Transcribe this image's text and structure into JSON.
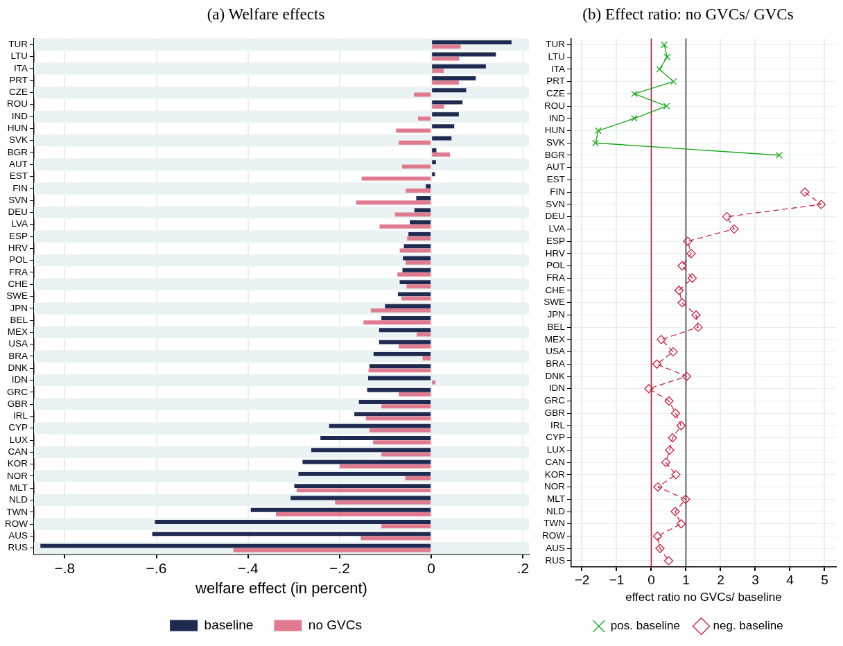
{
  "chart_data": [
    {
      "type": "bar",
      "orientation": "horizontal",
      "title": "(a) Welfare effects",
      "xlabel": "welfare effect (in percent)",
      "categories": [
        "TUR",
        "LTU",
        "ITA",
        "PRT",
        "CZE",
        "ROU",
        "IND",
        "HUN",
        "SVK",
        "BGR",
        "AUT",
        "EST",
        "FIN",
        "SVN",
        "DEU",
        "LVA",
        "ESP",
        "HRV",
        "POL",
        "FRA",
        "CHE",
        "SWE",
        "JPN",
        "BEL",
        "MEX",
        "USA",
        "BRA",
        "DNK",
        "IDN",
        "GRC",
        "GBR",
        "IRL",
        "CYP",
        "LUX",
        "CAN",
        "KOR",
        "NOR",
        "MLT",
        "NLD",
        "TWN",
        "ROW",
        "AUS",
        "RUS"
      ],
      "series": [
        {
          "name": "baseline",
          "color": "#1f2a50",
          "values": [
            0.175,
            0.141,
            0.119,
            0.097,
            0.076,
            0.068,
            0.06,
            0.05,
            0.044,
            0.011,
            0.01,
            0.008,
            -0.012,
            -0.033,
            -0.037,
            -0.047,
            -0.05,
            -0.06,
            -0.062,
            -0.063,
            -0.069,
            -0.073,
            -0.101,
            -0.109,
            -0.114,
            -0.114,
            -0.126,
            -0.135,
            -0.138,
            -0.14,
            -0.158,
            -0.168,
            -0.223,
            -0.242,
            -0.262,
            -0.281,
            -0.29,
            -0.299,
            -0.307,
            -0.394,
            -0.603,
            -0.609,
            -0.853
          ]
        },
        {
          "name": "no GVCs",
          "color": "#e07a8e",
          "values": [
            0.064,
            0.061,
            0.027,
            0.06,
            -0.038,
            0.028,
            -0.029,
            -0.077,
            -0.071,
            0.041,
            -0.064,
            -0.152,
            -0.056,
            -0.164,
            -0.079,
            -0.113,
            -0.053,
            -0.069,
            -0.056,
            -0.074,
            -0.054,
            -0.065,
            -0.132,
            -0.148,
            -0.032,
            -0.071,
            -0.019,
            -0.137,
            0.009,
            -0.071,
            -0.109,
            -0.143,
            -0.135,
            -0.127,
            -0.109,
            -0.2,
            -0.057,
            -0.294,
            -0.21,
            -0.339,
            -0.109,
            -0.154,
            -0.432
          ]
        }
      ],
      "xlim": [
        -0.867,
        0.213
      ],
      "xticks": [
        {
          "value": -0.8,
          "label": "−.8"
        },
        {
          "value": -0.6,
          "label": "−.6"
        },
        {
          "value": -0.4,
          "label": "−.4"
        },
        {
          "value": -0.2,
          "label": "−.2"
        },
        0,
        {
          "value": 0.2,
          "label": ".2"
        }
      ],
      "grid": "x",
      "legend": "bottom"
    },
    {
      "type": "line",
      "orientation": "horizontal",
      "title": "(b) Effect ratio: no GVCs/ GVCs",
      "xlabel": "effect ratio no GVCs/ baseline",
      "categories": [
        "TUR",
        "LTU",
        "ITA",
        "PRT",
        "CZE",
        "ROU",
        "IND",
        "HUN",
        "SVK",
        "BGR",
        "AUT",
        "EST",
        "FIN",
        "SVN",
        "DEU",
        "LVA",
        "ESP",
        "HRV",
        "POL",
        "FRA",
        "CHE",
        "SWE",
        "JPN",
        "BEL",
        "MEX",
        "USA",
        "BRA",
        "DNK",
        "IDN",
        "GRC",
        "GBR",
        "IRL",
        "CYP",
        "LUX",
        "CAN",
        "KOR",
        "NOR",
        "MLT",
        "NLD",
        "TWN",
        "ROW",
        "AUS",
        "RUS"
      ],
      "series": [
        {
          "name": "pos. baseline",
          "color": "#1aa81a",
          "marker": "cross",
          "line_style": "solid",
          "values": [
            0.37,
            0.46,
            0.24,
            0.64,
            -0.49,
            0.44,
            -0.49,
            -1.53,
            -1.61,
            3.69,
            null,
            null,
            null,
            null,
            null,
            null,
            null,
            null,
            null,
            null,
            null,
            null,
            null,
            null,
            null,
            null,
            null,
            null,
            null,
            null,
            null,
            null,
            null,
            null,
            null,
            null,
            null,
            null,
            null,
            null,
            null,
            null,
            null
          ]
        },
        {
          "name": "neg. baseline",
          "color": "#cc1f3f",
          "marker": "diamond",
          "line_style": "dashed",
          "values": [
            null,
            null,
            null,
            null,
            null,
            null,
            null,
            null,
            null,
            null,
            null,
            null,
            4.43,
            4.9,
            2.18,
            2.39,
            1.05,
            1.15,
            0.89,
            1.18,
            0.8,
            0.89,
            1.29,
            1.35,
            0.29,
            0.63,
            0.16,
            1.02,
            -0.07,
            0.51,
            0.7,
            0.86,
            0.61,
            0.53,
            0.42,
            0.71,
            0.19,
            0.99,
            0.69,
            0.86,
            0.18,
            0.25,
            0.5
          ]
        }
      ],
      "xlim": [
        -2.31,
        5.33
      ],
      "xticks": [
        {
          "value": -2,
          "label": "−2"
        },
        {
          "value": -1,
          "label": "−1"
        },
        0,
        1,
        2,
        3,
        4,
        5
      ],
      "ref_lines": [
        {
          "axis": "x",
          "value": 0,
          "color": "#b0122e"
        },
        {
          "axis": "x",
          "value": 1,
          "color": "#333333"
        }
      ],
      "grid": true,
      "legend": "bottom"
    }
  ]
}
